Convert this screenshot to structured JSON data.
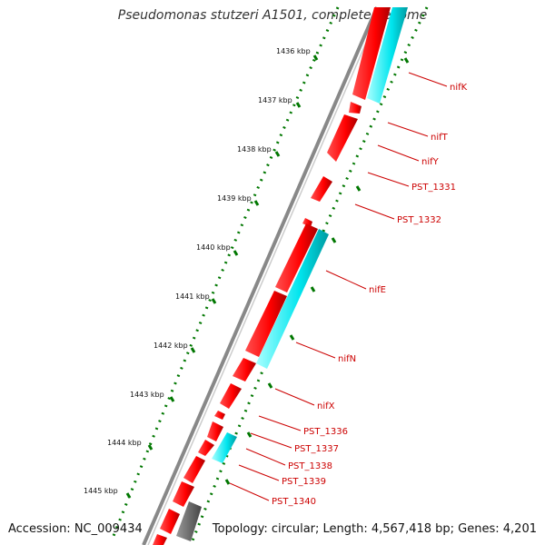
{
  "title": "Pseudomonas stutzeri A1501, complete genome",
  "accession": "Accession: NC_009434",
  "summary": "Topology: circular; Length: 4,567,418 bp; Genes: 4,201",
  "kbp_labels": [
    "1436 kbp",
    "1437 kbp",
    "1438 kbp",
    "1439 kbp",
    "1440 kbp",
    "1441 kbp",
    "1442 kbp",
    "1443 kbp",
    "1444 kbp",
    "1445 kbp"
  ],
  "gene_labels": [
    "nifK",
    "nifT",
    "nifY",
    "PST_1331",
    "PST_1332",
    "nifE",
    "nifN",
    "nifX",
    "PST_1336",
    "PST_1337",
    "PST_1338",
    "PST_1339",
    "PST_1340"
  ],
  "colors": {
    "cds": "#ff0000",
    "gene_highlight": "#00e5ee",
    "other_feature": "#666666",
    "backbone": "#888888",
    "tick": "#007700",
    "label": "#cc0000"
  }
}
